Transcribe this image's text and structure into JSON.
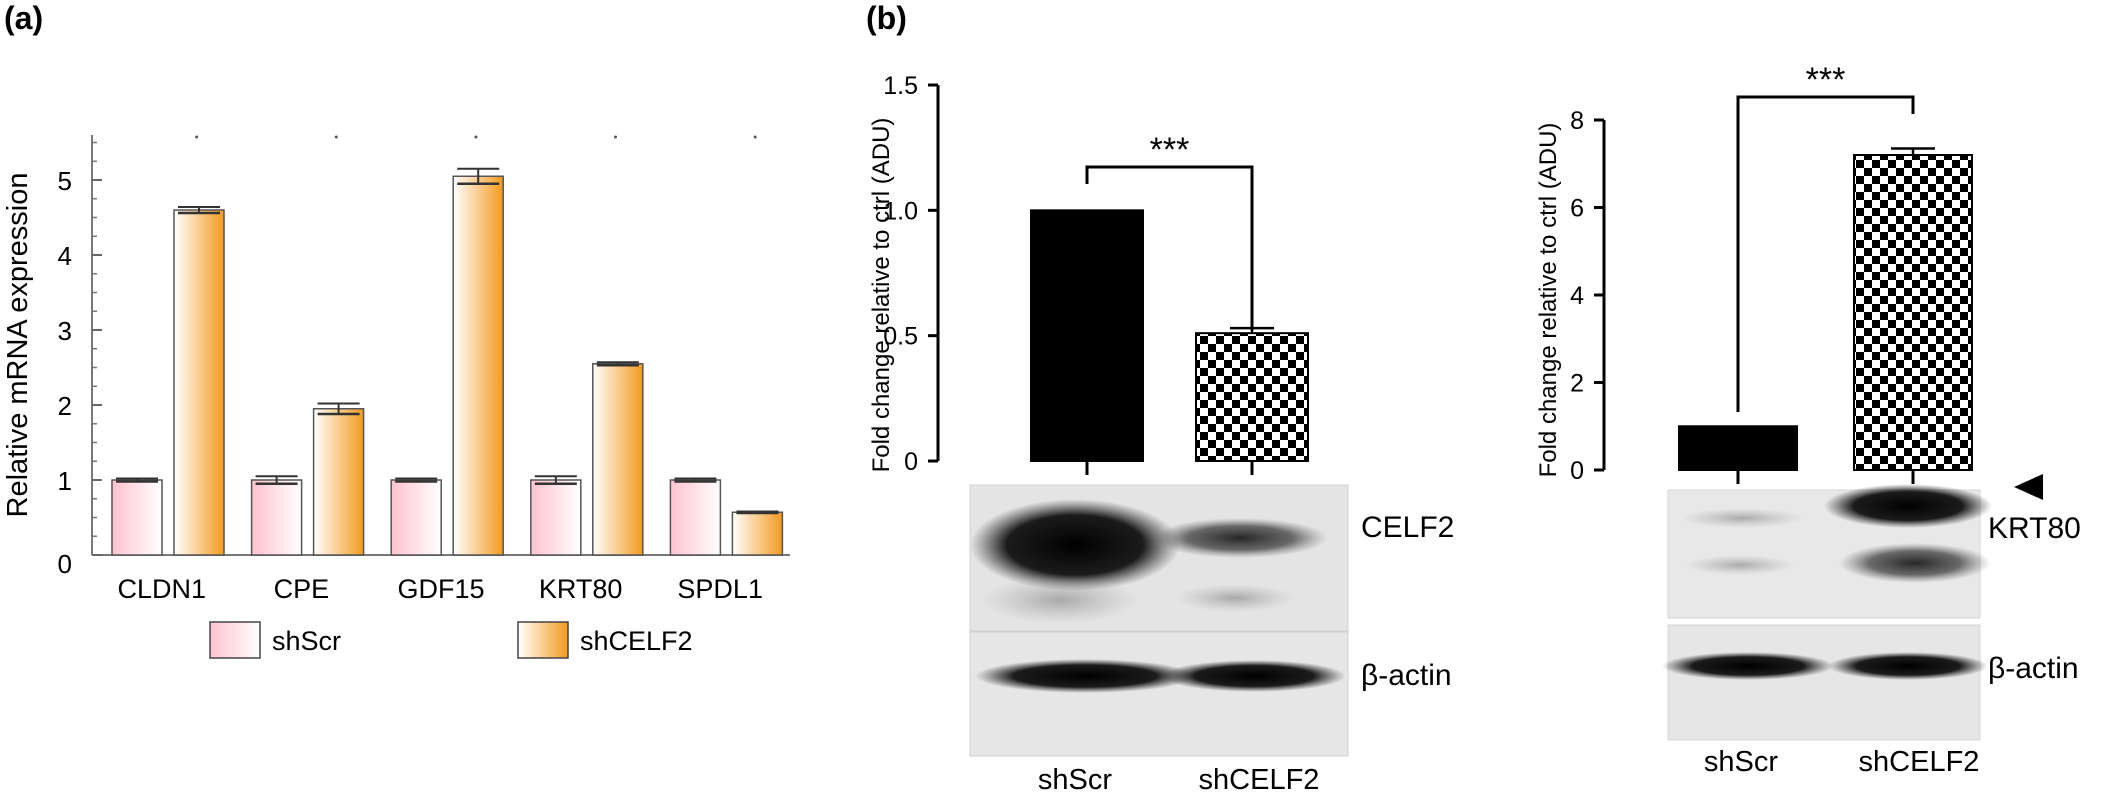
{
  "panel_labels": [
    "(a)",
    "(b)"
  ],
  "colors": {
    "pink": "#ffd6de",
    "orange": "#f7a233",
    "black": "#000000"
  },
  "chart_data": [
    {
      "type": "bar",
      "panel": "(a)",
      "categories": [
        "CLDN1",
        "CPE",
        "GDF15",
        "KRT80",
        "SPDL1"
      ],
      "series": [
        {
          "name": "shScr",
          "values": [
            1.0,
            1.0,
            1.0,
            1.0,
            1.0
          ],
          "errors": [
            0.02,
            0.05,
            0.02,
            0.05,
            0.02
          ]
        },
        {
          "name": "shCELF2",
          "values": [
            4.6,
            1.95,
            5.05,
            2.55,
            0.57
          ],
          "errors": [
            0.04,
            0.07,
            0.1,
            0.02,
            0.01
          ]
        }
      ],
      "ylabel": "Relative mRNA expression",
      "ylim": [
        0,
        5.6
      ],
      "yticks": [
        0,
        1,
        2,
        3,
        4,
        5
      ],
      "legend": [
        "shScr",
        "shCELF2"
      ],
      "legend_position": "bottom"
    },
    {
      "type": "bar",
      "panel": "(b) CELF2",
      "categories": [
        "shScr",
        "shCELF2"
      ],
      "values": [
        1.0,
        0.51
      ],
      "errors": [
        0,
        0.02
      ],
      "ylabel": "Fold change relative to ctrl (ADU)",
      "ylim": [
        0,
        1.5
      ],
      "yticks": [
        "0",
        "0.5",
        "1.0",
        "1.5"
      ],
      "significance": "***",
      "blot_labels": [
        "CELF2",
        "β-actin"
      ],
      "lane_labels": [
        "shScr",
        "shCELF2"
      ]
    },
    {
      "type": "bar",
      "panel": "(b) KRT80",
      "categories": [
        "shScr",
        "shCELF2"
      ],
      "values": [
        1.0,
        7.2
      ],
      "errors": [
        0,
        0.15
      ],
      "ylabel": "Fold change relative to ctrl (ADU)",
      "ylim": [
        0,
        8
      ],
      "yticks": [
        "0",
        "2",
        "4",
        "6",
        "8"
      ],
      "significance": "***",
      "blot_labels": [
        "KRT80",
        "β-actin"
      ],
      "lane_labels": [
        "shScr",
        "shCELF2"
      ]
    }
  ]
}
